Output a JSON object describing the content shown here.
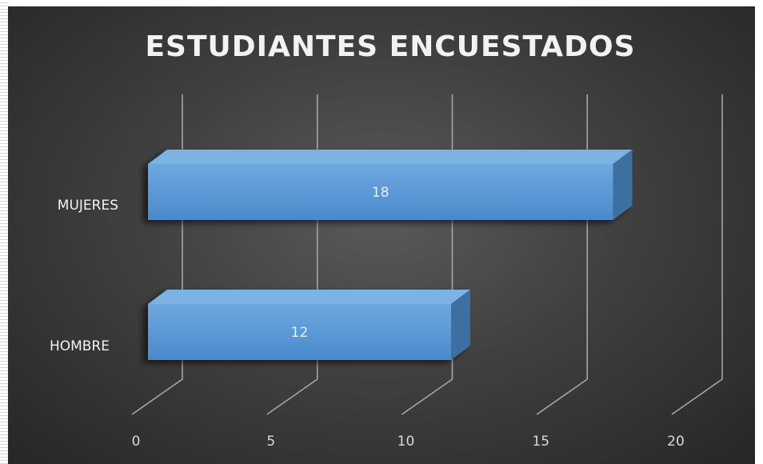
{
  "chart_data": {
    "type": "bar",
    "orientation": "horizontal",
    "three_d": true,
    "title": "ESTUDIANTES ENCUESTADOS",
    "categories": [
      "MUJERES",
      "HOMBRE"
    ],
    "values": [
      18,
      12
    ],
    "data_labels": [
      "18",
      "12"
    ],
    "xlim": [
      0,
      20
    ],
    "x_ticks": [
      0,
      5,
      10,
      15,
      20
    ],
    "x_tick_labels": [
      "0",
      "5",
      "10",
      "15",
      "20"
    ],
    "grid": true,
    "legend": "none",
    "colors": {
      "bar_front": "#5b9bd5",
      "bar_top": "#7db2e4",
      "bar_side": "#3c6fa0",
      "background": "#3a3a3a",
      "gridline": "#a6a6a6",
      "text": "#f2f2f2"
    }
  }
}
